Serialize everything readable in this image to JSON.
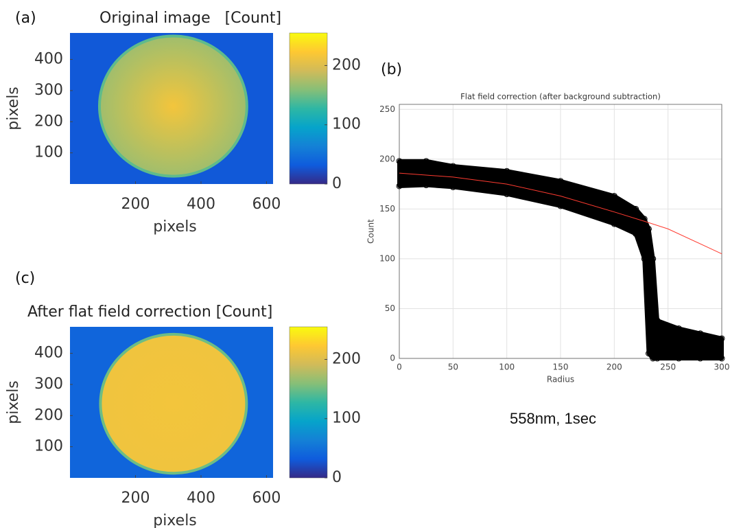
{
  "chart_data": [
    {
      "type": "heatmap",
      "panel_label": "(a)",
      "title": "Original image   [Count]",
      "xlabel": "pixels",
      "ylabel": "pixels",
      "xlim": [
        0,
        620
      ],
      "ylim": [
        0,
        485
      ],
      "xticks": [
        200,
        400,
        600
      ],
      "yticks": [
        100,
        200,
        300,
        400
      ],
      "disk": {
        "cx": 315,
        "cy": 250,
        "r": 225,
        "center_value": 215,
        "edge_value": 170,
        "rim_value": 145,
        "background_value": 30
      },
      "colorbar": {
        "lim": [
          0,
          255
        ],
        "ticks": [
          0,
          100,
          200
        ]
      },
      "colormap": [
        "#352a87",
        "#0f5cdd",
        "#1481d6",
        "#06a4ca",
        "#2eb7a4",
        "#87bf77",
        "#d1bb59",
        "#fec832",
        "#f9fb0e"
      ]
    },
    {
      "type": "scatter",
      "panel_label": "(b)",
      "title": "Flat field correction (after background subtraction)",
      "xlabel": "Radius",
      "ylabel": "Count",
      "xlim": [
        0,
        300
      ],
      "ylim": [
        0,
        255
      ],
      "xticks": [
        0,
        50,
        100,
        150,
        200,
        250,
        300
      ],
      "yticks": [
        0,
        50,
        100,
        150,
        200,
        250
      ],
      "grid": true,
      "band": {
        "color": "#000000",
        "x": [
          0,
          25,
          50,
          100,
          150,
          200,
          220,
          228,
          232,
          236,
          240,
          260,
          280,
          300
        ],
        "upper": [
          198,
          198,
          193,
          188,
          178,
          163,
          150,
          140,
          130,
          100,
          38,
          30,
          25,
          20
        ],
        "lower": [
          173,
          174,
          172,
          165,
          153,
          135,
          125,
          100,
          5,
          0,
          0,
          0,
          0,
          0
        ]
      },
      "fit": {
        "color": "#ff3b30",
        "x": [
          0,
          50,
          100,
          150,
          200,
          230,
          250,
          300
        ],
        "values": [
          186,
          182,
          175,
          163,
          147,
          137,
          130,
          105
        ]
      },
      "annotation": "558nm, 1sec"
    },
    {
      "type": "heatmap",
      "panel_label": "(c)",
      "title": "After flat field correction [Count]",
      "xlabel": "pixels",
      "ylabel": "pixels",
      "xlim": [
        0,
        620
      ],
      "ylim": [
        0,
        485
      ],
      "xticks": [
        200,
        400,
        600
      ],
      "yticks": [
        100,
        200,
        300,
        400
      ],
      "disk": {
        "cx": 316,
        "cy": 238,
        "r": 223,
        "center_value": 215,
        "edge_value": 213,
        "rim_value": 150,
        "background_value": 40
      },
      "colorbar": {
        "lim": [
          0,
          255
        ],
        "ticks": [
          0,
          100,
          200
        ]
      },
      "colormap": [
        "#352a87",
        "#0f5cdd",
        "#1481d6",
        "#06a4ca",
        "#2eb7a4",
        "#87bf77",
        "#d1bb59",
        "#fec832",
        "#f9fb0e"
      ]
    }
  ]
}
